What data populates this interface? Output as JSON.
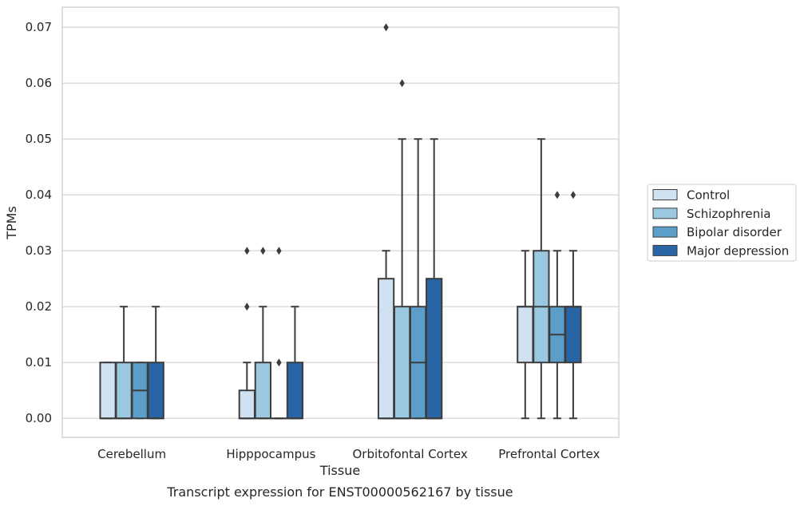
{
  "chart_data": {
    "type": "boxplot",
    "xlabel": "Tissue",
    "ylabel": "TPMs",
    "caption": "Transcript expression for ENST00000562167 by tissue",
    "ylim": [
      -0.0034,
      0.0736
    ],
    "yticks": [
      0.0,
      0.01,
      0.02,
      0.03,
      0.04,
      0.05,
      0.06,
      0.07
    ],
    "ytick_labels": [
      "0.00",
      "0.01",
      "0.02",
      "0.03",
      "0.04",
      "0.05",
      "0.06",
      "0.07"
    ],
    "grid": "horizontal",
    "legend_position": "right",
    "categories": [
      "Cerebellum",
      "Hipppocampus",
      "Orbitofontal Cortex",
      "Prefrontal Cortex"
    ],
    "series": [
      {
        "name": "Control",
        "color": "#d0e1f2",
        "boxes": [
          {
            "whislo": 0.0,
            "q1": 0.0,
            "med": 0.0,
            "q3": 0.01,
            "whishi": 0.01,
            "fliers": []
          },
          {
            "whislo": 0.0,
            "q1": 0.0,
            "med": 0.0,
            "q3": 0.005,
            "whishi": 0.01,
            "fliers": [
              0.02,
              0.03
            ]
          },
          {
            "whislo": 0.0,
            "q1": 0.0,
            "med": 0.0,
            "q3": 0.025,
            "whishi": 0.03,
            "fliers": [
              0.07
            ]
          },
          {
            "whislo": 0.0,
            "q1": 0.01,
            "med": 0.02,
            "q3": 0.02,
            "whishi": 0.03,
            "fliers": []
          }
        ]
      },
      {
        "name": "Schizophrenia",
        "color": "#9ac8e0",
        "boxes": [
          {
            "whislo": 0.0,
            "q1": 0.0,
            "med": 0.0,
            "q3": 0.01,
            "whishi": 0.02,
            "fliers": []
          },
          {
            "whislo": 0.0,
            "q1": 0.0,
            "med": 0.0,
            "q3": 0.01,
            "whishi": 0.02,
            "fliers": [
              0.03
            ]
          },
          {
            "whislo": 0.0,
            "q1": 0.0,
            "med": 0.0,
            "q3": 0.02,
            "whishi": 0.05,
            "fliers": [
              0.06
            ]
          },
          {
            "whislo": 0.0,
            "q1": 0.01,
            "med": 0.02,
            "q3": 0.03,
            "whishi": 0.05,
            "fliers": []
          }
        ]
      },
      {
        "name": "Bipolar disorder",
        "color": "#5a9ec9",
        "boxes": [
          {
            "whislo": 0.0,
            "q1": 0.0,
            "med": 0.005,
            "q3": 0.01,
            "whishi": 0.01,
            "fliers": []
          },
          {
            "whislo": 0.0,
            "q1": 0.0,
            "med": 0.0,
            "q3": 0.0,
            "whishi": 0.0,
            "fliers": [
              0.01,
              0.03
            ]
          },
          {
            "whislo": 0.0,
            "q1": 0.0,
            "med": 0.01,
            "q3": 0.02,
            "whishi": 0.05,
            "fliers": []
          },
          {
            "whislo": 0.0,
            "q1": 0.01,
            "med": 0.015,
            "q3": 0.02,
            "whishi": 0.03,
            "fliers": [
              0.04
            ]
          }
        ]
      },
      {
        "name": "Major depression",
        "color": "#2965a6",
        "boxes": [
          {
            "whislo": 0.0,
            "q1": 0.0,
            "med": 0.0,
            "q3": 0.01,
            "whishi": 0.02,
            "fliers": []
          },
          {
            "whislo": 0.0,
            "q1": 0.0,
            "med": 0.0,
            "q3": 0.01,
            "whishi": 0.02,
            "fliers": []
          },
          {
            "whislo": 0.0,
            "q1": 0.0,
            "med": 0.0,
            "q3": 0.025,
            "whishi": 0.05,
            "fliers": []
          },
          {
            "whislo": 0.0,
            "q1": 0.01,
            "med": 0.02,
            "q3": 0.02,
            "whishi": 0.03,
            "fliers": [
              0.04
            ]
          }
        ]
      }
    ]
  }
}
